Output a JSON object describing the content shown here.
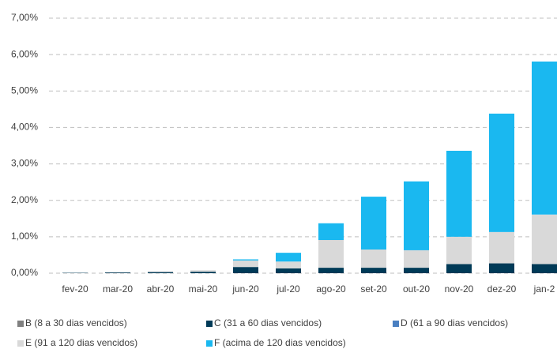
{
  "chart_data": {
    "type": "stacked_bar",
    "categories": [
      "fev-20",
      "mar-20",
      "abr-20",
      "mai-20",
      "jun-20",
      "jul-20",
      "ago-20",
      "set-20",
      "out-20",
      "nov-20",
      "dez-20",
      "jan-2"
    ],
    "series": [
      {
        "name": "B (8 a 30 dias vencidos)",
        "color": "#808080",
        "values": [
          0,
          0,
          0,
          0,
          0,
          0,
          0,
          0,
          0,
          0,
          0,
          0
        ]
      },
      {
        "name": "C (31 a 60 dias vencidos)",
        "color": "#003a57",
        "values": [
          0.01,
          0.02,
          0.03,
          0.04,
          0.17,
          0.13,
          0.15,
          0.15,
          0.15,
          0.25,
          0.27,
          0.25
        ]
      },
      {
        "name": "D (61 a 90 dias vencidos)",
        "color": "#4a7fc1",
        "values": [
          0,
          0,
          0,
          0,
          0,
          0,
          0,
          0,
          0,
          0,
          0,
          0
        ]
      },
      {
        "name": "E (91 a 120 dias vencidos)",
        "color": "#d9d9d9",
        "values": [
          0,
          0.01,
          0.02,
          0.04,
          0.18,
          0.19,
          0.76,
          0.5,
          0.48,
          0.75,
          0.86,
          1.36
        ]
      },
      {
        "name": "F (acima de 120 dias vencidos)",
        "color": "#1ab8f0",
        "values": [
          0,
          0,
          0,
          0,
          0.03,
          0.24,
          0.46,
          1.45,
          1.89,
          2.36,
          3.25,
          4.2
        ]
      }
    ],
    "ylim": [
      0,
      7
    ],
    "yticks": [
      {
        "value": 0,
        "label": "0,00%"
      },
      {
        "value": 1,
        "label": "1,00%"
      },
      {
        "value": 2,
        "label": "2,00%"
      },
      {
        "value": 3,
        "label": "3,00%"
      },
      {
        "value": 4,
        "label": "4,00%"
      },
      {
        "value": 5,
        "label": "5,00%"
      },
      {
        "value": 6,
        "label": "6,00%"
      },
      {
        "value": 7,
        "label": "7,00%"
      }
    ],
    "grid": true,
    "legend": "bottom"
  }
}
